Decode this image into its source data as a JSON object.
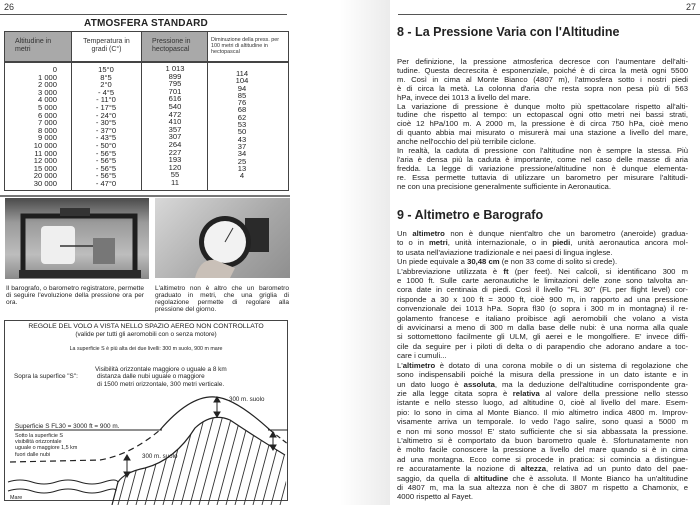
{
  "left_page": {
    "page_number": "26",
    "table": {
      "title": "ATMOSFERA STANDARD",
      "headers": [
        "Altitudine in metri",
        "Temperatura in gradi (C°)",
        "Pressione in hectopascal",
        "Diminuzione della press. per 100 metri di altitudine in hectopascal"
      ],
      "altitude": [
        "0",
        "1 000",
        "2 000",
        "3 000",
        "4 000",
        "5 000",
        "6 000",
        "7 000",
        "8 000",
        "9 000",
        "10 000",
        "11 000",
        "12 000",
        "15 000",
        "20 000",
        "30 000"
      ],
      "temperature": [
        "15°0",
        "8°5",
        "2°0",
        "- 4°5",
        "- 11°0",
        "- 17°5",
        "- 24°0",
        "- 30°5",
        "- 37°0",
        "- 43°5",
        "- 50°0",
        "- 56°5",
        "- 56°5",
        "- 56°5",
        "- 56°5",
        "- 47°0"
      ],
      "pressure": [
        "1 013",
        "899",
        "795",
        "701",
        "616",
        "540",
        "472",
        "410",
        "357",
        "307",
        "264",
        "227",
        "193",
        "120",
        "55",
        "11"
      ],
      "decrease": [
        "114",
        "104",
        "94",
        "85",
        "76",
        "68",
        "62",
        "53",
        "50",
        "43",
        "37",
        "34",
        "25",
        "13",
        "4"
      ]
    },
    "photos": [
      {
        "caption": "Il barografo, o barometro registratore, permette di seguire l'evoluzione della pressione ora per ora."
      },
      {
        "caption": "L'altimetro non è altro che un barometro graduato in metri, che una griglia di regolazione permette di regolare alla pressione del giorno."
      }
    ],
    "diagram": {
      "title": "REGOLE DEL VOLO A VISTA NELLO SPAZIO AEREO NON CONTROLLATO",
      "subtitle": "(valide per tutti gli aeromobili con o senza motore)",
      "note": "La superficie S è più alta dei due livelli: 300 m suolo, 900 m mare",
      "above_label": "Sopra la superfice \"S\":",
      "above_lines": [
        "Visibilità orizzontale maggiore o uguale a 8 km",
        "distanza dalle nubi uguale o maggiore",
        "di 1500 metri  orizzontale, 300 metri verticale."
      ],
      "surface_label": "Superficie S   FL30 = 3000 ft = 900 m.",
      "below_lines": [
        "Sotto la superficie S",
        "visibilità orizzontale",
        "uguale o maggiore 1,5 km",
        "fuori dalle nubi"
      ],
      "suolo_top": "300 m. suolo",
      "suolo_low": "300 m. suolo",
      "sea": "Mare"
    }
  },
  "right_page": {
    "page_number": "27",
    "section8": {
      "heading": "8 - La Pressione Varia con l'Altitudine",
      "lines": [
        [
          "Per definizione, la pressione atmosferica decresce con l'aumentare dell'alti-"
        ],
        [
          "tudine. Questa decrescita è esponenziale, poiché è di circa la metà ogni 5500"
        ],
        [
          "m. Così in cima al Monte Bianco (4807 m), l'atmosfera sotto i nostri piedi"
        ],
        [
          "è di circa la metà. La colonna d'aria che resta sopra non pesa più di 563"
        ],
        [
          "hPa, invece dei 1013 a livello del mare."
        ],
        [
          "La variazione di pressione è dunque molto più spettacolare rispetto all'alti-"
        ],
        [
          "tudine che rispetto al tempo: un ectopascal ogni otto metri nei bassi strati,"
        ],
        [
          "cioè 12 hPa/100 m. A 2000 m, la pressione è di circa 750 hPa, cioè meno"
        ],
        [
          "di quanto abbia mai misurato o misurerà mai una stazione a livello del mare,"
        ],
        [
          "anche nell'occhio del più terribile ciclone."
        ],
        [
          "In realtà, la caduta di pressione con l'altitudine non è sempre la stessa. Più"
        ],
        [
          "l'aria è densa più la caduta è importante, come nel caso delle masse di aria"
        ],
        [
          "fredda. La legge di variazione pressione/altitudine non è dunque elementa-"
        ],
        [
          "re. Essa permette tuttavia di utilizzare un barometro per misurare l'altitudi-"
        ],
        [
          "ne con una precisione generalmente sufficiente in Aeronautica."
        ]
      ]
    },
    "section9": {
      "heading": "9 - Altimetro e Barografo",
      "lines": [
        [
          "Un ",
          "altimetro",
          " non è dunque nient'altro che un barometro (aneroide) gradua-"
        ],
        [
          "to o in ",
          "metri",
          ", unità internazionale, o in ",
          "piedi",
          ", unità aeronautica ancora mol-"
        ],
        [
          "to usata nell'aviazione tradizionale e nei paesi di lingua inglese."
        ],
        [
          "Un piede equivale a ",
          "30,48 cm",
          " (e non 33 come di solito si crede)."
        ],
        [
          "L'abbreviazione utilizzata è ",
          "ft",
          " (per feet). Nei calcoli, si identificano 300 m"
        ],
        [
          "e 1000 ft. Sulle carte aeronautiche le limitazioni delle zone sono talvolta an-"
        ],
        [
          "cora date in centinaia di piedi. Così il livello ''FL 30'' (FL per flight level) cor-"
        ],
        [
          "risponde a 30 x 100 ft = 3000 ft, cioè 900 m, in rapporto ad una pressione"
        ],
        [
          "convenzionale dei 1013 hPa. Sopra fl30 (o sopra i 300 m in montagna) il re-"
        ],
        [
          "golamento francese e italiano proibisce agli aeromobili che volano a vista"
        ],
        [
          "di avvicinarsi a meno di 300 m dalla base delle nubi: è una norma alla quale"
        ],
        [
          "si sottomettono facilmente gli ULM, gli aerei e le mongolfiere. E' invece diffi-"
        ],
        [
          "cile da seguire per i piloti di delta o di parapendio che adorano andare a toc-"
        ],
        [
          "care i cumuli..."
        ],
        [
          "L'",
          "altimetro",
          " è dotato di una corona mobile o di un sistema di regolazione che"
        ],
        [
          "sono indispensabili poiché la misura della pressione in un dato istante e in"
        ],
        [
          "un dato luogo è ",
          "assoluta",
          ", ma la deduzione dell'altitudine corrispondente gra-"
        ],
        [
          "zie alla legge citata sopra è ",
          "relativa",
          " al valore della pressione nello stesso"
        ],
        [
          "istante e nello stesso luogo, ad altitudine 0, cioè al livello del mare. Esem-"
        ],
        [
          "pio: Io sono in cima al Monte Bianco. Il mio altimetro indica 4800 m. Improv-"
        ],
        [
          "visamente arriva un temporale. Io vedo l'ago salire, sono quasi a 5000 m"
        ],
        [
          "e non mi sono mosso! E' stato sufficiente che si sia abbassata la pressione."
        ],
        [
          "L'altimetro si è comportato da buon barometro quale è. Sfortunatamente non"
        ],
        [
          "è molto facile conoscere la pressione a livello del mare quando si è in cima"
        ],
        [
          "ad una montagna. Ecco come si procede in pratica: si comincia a distingue-"
        ],
        [
          "re accuratamente la nozione di ",
          "altezza",
          ", relativa ad un punto dato del pae-"
        ],
        [
          "saggio, da quella di ",
          "altitudine",
          " che è assoluta. Il Monte Bianco ha un'altitudine"
        ],
        [
          "di 4807 m, ma la sua altezza non è che di 3807 m rispetto a Chamonix, e"
        ],
        [
          "4000 rispetto al Fayet."
        ]
      ]
    }
  }
}
